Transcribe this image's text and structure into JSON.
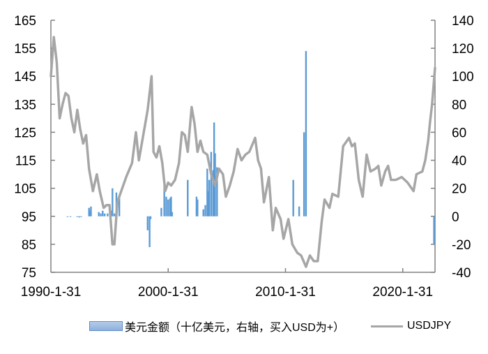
{
  "chart_data": {
    "type": "bar+line",
    "title": "",
    "xlabel": "",
    "ylabel_left": "",
    "ylabel_right": "",
    "x_tick_labels": [
      "1990-1-31",
      "2000-1-31",
      "2010-1-31",
      "2020-1-31"
    ],
    "x_range": [
      "1990-01",
      "2022-10"
    ],
    "left_axis": {
      "ylim": [
        75,
        165
      ],
      "ticks": [
        165,
        155,
        145,
        135,
        125,
        115,
        105,
        95,
        85,
        75
      ]
    },
    "right_axis": {
      "ylim": [
        -40,
        140
      ],
      "ticks": [
        140,
        120,
        100,
        80,
        60,
        40,
        20,
        0,
        -20,
        -40
      ]
    },
    "grid": false,
    "legend_position": "bottom",
    "series": [
      {
        "name": "美元金额（十亿美元，右轴，买入USD为+）",
        "type": "bar",
        "axis": "right",
        "color": "#5b9bd5",
        "points": [
          {
            "x": "1991-06",
            "y": -0.3
          },
          {
            "x": "1991-09",
            "y": -0.3
          },
          {
            "x": "1992-04",
            "y": -0.3
          },
          {
            "x": "1992-06",
            "y": -0.8
          },
          {
            "x": "1992-08",
            "y": -0.5
          },
          {
            "x": "1993-04",
            "y": 6
          },
          {
            "x": "1993-05",
            "y": 4
          },
          {
            "x": "1993-06",
            "y": 7
          },
          {
            "x": "1994-02",
            "y": 3
          },
          {
            "x": "1994-04",
            "y": 2
          },
          {
            "x": "1994-06",
            "y": 4
          },
          {
            "x": "1994-08",
            "y": 2
          },
          {
            "x": "1994-11",
            "y": 2
          },
          {
            "x": "1995-03",
            "y": 4
          },
          {
            "x": "1995-04",
            "y": 20
          },
          {
            "x": "1995-06",
            "y": 2
          },
          {
            "x": "1995-08",
            "y": 17
          },
          {
            "x": "1995-11",
            "y": 15
          },
          {
            "x": "1998-04",
            "y": -10
          },
          {
            "x": "1998-06",
            "y": -22
          },
          {
            "x": "1998-07",
            "y": -2
          },
          {
            "x": "1999-06",
            "y": 6
          },
          {
            "x": "1999-09",
            "y": 25
          },
          {
            "x": "1999-11",
            "y": 14
          },
          {
            "x": "2000-01",
            "y": 12
          },
          {
            "x": "2000-03",
            "y": 13
          },
          {
            "x": "2000-04",
            "y": 14
          },
          {
            "x": "2000-05",
            "y": 3
          },
          {
            "x": "2001-09",
            "y": 26
          },
          {
            "x": "2002-06",
            "y": 14
          },
          {
            "x": "2002-07",
            "y": 12
          },
          {
            "x": "2003-01",
            "y": 5
          },
          {
            "x": "2003-03",
            "y": 8
          },
          {
            "x": "2003-05",
            "y": 34
          },
          {
            "x": "2003-06",
            "y": 18
          },
          {
            "x": "2003-07",
            "y": 26
          },
          {
            "x": "2003-09",
            "y": 46
          },
          {
            "x": "2003-11",
            "y": 33
          },
          {
            "x": "2003-12",
            "y": 67
          },
          {
            "x": "2004-01",
            "y": 45
          },
          {
            "x": "2004-03",
            "y": 35
          },
          {
            "x": "2010-09",
            "y": 26
          },
          {
            "x": "2011-03",
            "y": 7
          },
          {
            "x": "2011-08",
            "y": 60
          },
          {
            "x": "2011-10",
            "y": 118
          },
          {
            "x": "2022-09",
            "y": -20
          }
        ]
      },
      {
        "name": "USDJPY",
        "type": "line",
        "axis": "left",
        "color": "#a6a6a6",
        "points": [
          {
            "x": "1990-01",
            "y": 145
          },
          {
            "x": "1990-04",
            "y": 159
          },
          {
            "x": "1990-07",
            "y": 150
          },
          {
            "x": "1990-10",
            "y": 130
          },
          {
            "x": "1991-01",
            "y": 135
          },
          {
            "x": "1991-04",
            "y": 139
          },
          {
            "x": "1991-07",
            "y": 138
          },
          {
            "x": "1991-10",
            "y": 130
          },
          {
            "x": "1992-01",
            "y": 125
          },
          {
            "x": "1992-04",
            "y": 133
          },
          {
            "x": "1992-07",
            "y": 126
          },
          {
            "x": "1992-10",
            "y": 121
          },
          {
            "x": "1993-01",
            "y": 124
          },
          {
            "x": "1993-04",
            "y": 112
          },
          {
            "x": "1993-08",
            "y": 104
          },
          {
            "x": "1993-12",
            "y": 110
          },
          {
            "x": "1994-03",
            "y": 104
          },
          {
            "x": "1994-07",
            "y": 98
          },
          {
            "x": "1994-10",
            "y": 99
          },
          {
            "x": "1995-01",
            "y": 99
          },
          {
            "x": "1995-04",
            "y": 85
          },
          {
            "x": "1995-06",
            "y": 85
          },
          {
            "x": "1995-09",
            "y": 100
          },
          {
            "x": "1995-12",
            "y": 103
          },
          {
            "x": "1996-06",
            "y": 109
          },
          {
            "x": "1996-12",
            "y": 114
          },
          {
            "x": "1997-04",
            "y": 125
          },
          {
            "x": "1997-07",
            "y": 115
          },
          {
            "x": "1997-10",
            "y": 121
          },
          {
            "x": "1998-01",
            "y": 127
          },
          {
            "x": "1998-04",
            "y": 133
          },
          {
            "x": "1998-08",
            "y": 145
          },
          {
            "x": "1998-10",
            "y": 118
          },
          {
            "x": "1999-01",
            "y": 116
          },
          {
            "x": "1999-04",
            "y": 120
          },
          {
            "x": "1999-07",
            "y": 114
          },
          {
            "x": "1999-10",
            "y": 104
          },
          {
            "x": "2000-01",
            "y": 107
          },
          {
            "x": "2000-04",
            "y": 106
          },
          {
            "x": "2000-08",
            "y": 108
          },
          {
            "x": "2000-12",
            "y": 114
          },
          {
            "x": "2001-03",
            "y": 125
          },
          {
            "x": "2001-06",
            "y": 124
          },
          {
            "x": "2001-09",
            "y": 118
          },
          {
            "x": "2002-01",
            "y": 134
          },
          {
            "x": "2002-04",
            "y": 128
          },
          {
            "x": "2002-07",
            "y": 118
          },
          {
            "x": "2002-10",
            "y": 122
          },
          {
            "x": "2003-01",
            "y": 118
          },
          {
            "x": "2003-05",
            "y": 117
          },
          {
            "x": "2003-09",
            "y": 110
          },
          {
            "x": "2004-01",
            "y": 106
          },
          {
            "x": "2004-05",
            "y": 112
          },
          {
            "x": "2004-09",
            "y": 110
          },
          {
            "x": "2004-12",
            "y": 102
          },
          {
            "x": "2005-04",
            "y": 106
          },
          {
            "x": "2005-08",
            "y": 111
          },
          {
            "x": "2005-12",
            "y": 119
          },
          {
            "x": "2006-04",
            "y": 115
          },
          {
            "x": "2006-08",
            "y": 117
          },
          {
            "x": "2006-12",
            "y": 118
          },
          {
            "x": "2007-06",
            "y": 123
          },
          {
            "x": "2007-09",
            "y": 115
          },
          {
            "x": "2007-12",
            "y": 112
          },
          {
            "x": "2008-03",
            "y": 100
          },
          {
            "x": "2008-08",
            "y": 109
          },
          {
            "x": "2008-12",
            "y": 90
          },
          {
            "x": "2009-03",
            "y": 98
          },
          {
            "x": "2009-08",
            "y": 94
          },
          {
            "x": "2009-11",
            "y": 87
          },
          {
            "x": "2010-04",
            "y": 94
          },
          {
            "x": "2010-08",
            "y": 85
          },
          {
            "x": "2011-01",
            "y": 82
          },
          {
            "x": "2011-05",
            "y": 81
          },
          {
            "x": "2011-10",
            "y": 77
          },
          {
            "x": "2012-02",
            "y": 81
          },
          {
            "x": "2012-06",
            "y": 79
          },
          {
            "x": "2012-10",
            "y": 79
          },
          {
            "x": "2013-02",
            "y": 93
          },
          {
            "x": "2013-05",
            "y": 101
          },
          {
            "x": "2013-10",
            "y": 98
          },
          {
            "x": "2014-01",
            "y": 103
          },
          {
            "x": "2014-07",
            "y": 102
          },
          {
            "x": "2014-12",
            "y": 120
          },
          {
            "x": "2015-06",
            "y": 123
          },
          {
            "x": "2015-09",
            "y": 120
          },
          {
            "x": "2015-12",
            "y": 121
          },
          {
            "x": "2016-04",
            "y": 108
          },
          {
            "x": "2016-08",
            "y": 102
          },
          {
            "x": "2016-12",
            "y": 117
          },
          {
            "x": "2017-04",
            "y": 111
          },
          {
            "x": "2017-09",
            "y": 112
          },
          {
            "x": "2017-12",
            "y": 113
          },
          {
            "x": "2018-03",
            "y": 106
          },
          {
            "x": "2018-07",
            "y": 111
          },
          {
            "x": "2018-10",
            "y": 113
          },
          {
            "x": "2019-01",
            "y": 108
          },
          {
            "x": "2019-06",
            "y": 108
          },
          {
            "x": "2019-12",
            "y": 109
          },
          {
            "x": "2020-06",
            "y": 107
          },
          {
            "x": "2020-12",
            "y": 104
          },
          {
            "x": "2021-03",
            "y": 110
          },
          {
            "x": "2021-09",
            "y": 111
          },
          {
            "x": "2021-12",
            "y": 115
          },
          {
            "x": "2022-03",
            "y": 122
          },
          {
            "x": "2022-05",
            "y": 129
          },
          {
            "x": "2022-07",
            "y": 135
          },
          {
            "x": "2022-10",
            "y": 148
          }
        ]
      }
    ]
  },
  "legend": {
    "bar_label": "美元金额（十亿美元，右轴，买入USD为+）",
    "line_label": "USDJPY"
  },
  "colors": {
    "bar": "#5b9bd5",
    "line": "#a6a6a6",
    "axis": "#808080"
  }
}
